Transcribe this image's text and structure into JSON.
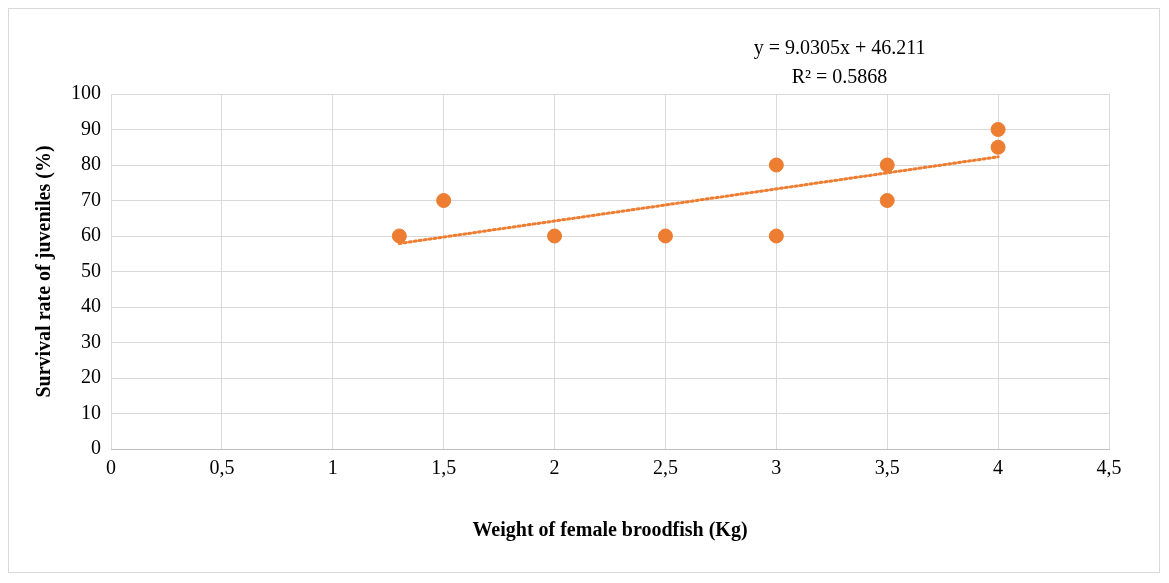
{
  "chart_data": {
    "type": "scatter",
    "xlabel": "Weight of female broodfish (Kg)",
    "ylabel": "Survival rate of juveniles (%)",
    "annotations": [
      "y = 9.0305x + 46.211",
      "R² = 0.5868"
    ],
    "xlim": [
      0,
      4.5
    ],
    "xticks": [
      0,
      {
        "value": 0.5,
        "label": "0,5"
      },
      1,
      {
        "value": 1.5,
        "label": "1,5"
      },
      2,
      {
        "value": 2.5,
        "label": "2,5"
      },
      3,
      {
        "value": 3.5,
        "label": "3,5"
      },
      4,
      {
        "value": 4.5,
        "label": "4,5"
      }
    ],
    "ylim": [
      0,
      100
    ],
    "yticks": [
      0,
      10,
      20,
      30,
      40,
      50,
      60,
      70,
      80,
      90,
      100
    ],
    "grid": true,
    "series": [
      {
        "type": "scatter",
        "color": "#ed7d31",
        "marker": "circle",
        "x": [
          1.3,
          1.5,
          2,
          2.5,
          3,
          3,
          3.5,
          3.5,
          4,
          4
        ],
        "values": [
          60,
          70,
          60,
          60,
          80,
          60,
          80,
          70,
          90,
          85
        ]
      },
      {
        "type": "line",
        "color": "#ed7d31",
        "marker": "none",
        "line_style": "dotted",
        "x": [
          1.3,
          4
        ],
        "values": [
          57.9,
          82.3
        ]
      }
    ]
  }
}
